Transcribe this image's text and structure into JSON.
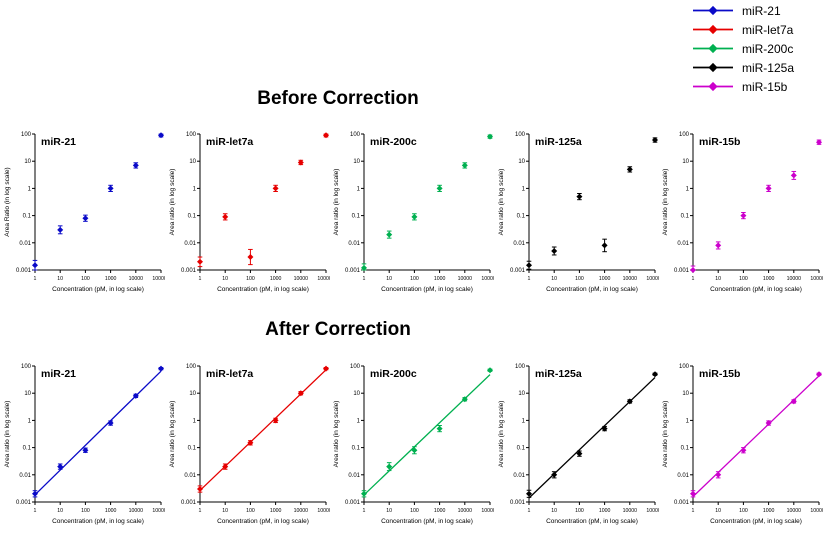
{
  "figure": {
    "before_title": "Before Correction",
    "after_title": "After Correction"
  },
  "legend": {
    "items": [
      {
        "label": "miR-21",
        "color": "#0a0ac8"
      },
      {
        "label": "miR-let7a",
        "color": "#e60000"
      },
      {
        "label": "miR-200c",
        "color": "#00b050"
      },
      {
        "label": "miR-125a",
        "color": "#000000"
      },
      {
        "label": "miR-15b",
        "color": "#cc00cc"
      }
    ]
  },
  "chart_data": [
    {
      "type": "scatter",
      "row": "before",
      "title": "miR-21",
      "color": "#0a0ac8",
      "marker": "diamond",
      "fit_line": false,
      "x": [
        1,
        10,
        100,
        1000,
        10000,
        100000
      ],
      "y": [
        0.0015,
        0.03,
        0.08,
        1.0,
        7,
        90
      ],
      "yerr": [
        1.5,
        1.4,
        1.3,
        1.3,
        1.25,
        1.15
      ],
      "xlabel": "Concentration (pM, in log scale)",
      "ylabel": "Area Ratio (in log scale)",
      "xlim": [
        1,
        100000
      ],
      "ylim": [
        0.001,
        100
      ],
      "xticks": [
        "1",
        "10",
        "100",
        "1000",
        "10000",
        "100000"
      ],
      "yticks": [
        "100",
        "10",
        "1",
        "0.1",
        "0.01",
        "0.001"
      ]
    },
    {
      "type": "scatter",
      "row": "before",
      "title": "miR-let7a",
      "color": "#e60000",
      "marker": "diamond",
      "fit_line": false,
      "x": [
        1,
        10,
        100,
        1000,
        10000,
        100000
      ],
      "y": [
        0.002,
        0.09,
        0.003,
        1.0,
        9,
        90
      ],
      "yerr": [
        1.5,
        1.3,
        1.9,
        1.3,
        1.2,
        1.15
      ],
      "xlabel": "Concentration (pM, in log scale)",
      "ylabel": "Area ratio (in log scale)",
      "xlim": [
        1,
        100000
      ],
      "ylim": [
        0.001,
        100
      ],
      "xticks": [
        "1",
        "10",
        "100",
        "1000",
        "10000",
        "100000"
      ],
      "yticks": [
        "100",
        "10",
        "1",
        "0.1",
        "0.01",
        "0.001"
      ]
    },
    {
      "type": "scatter",
      "row": "before",
      "title": "miR-200c",
      "color": "#00b050",
      "marker": "diamond",
      "fit_line": false,
      "x": [
        1,
        10,
        100,
        1000,
        10000,
        100000
      ],
      "y": [
        0.0012,
        0.02,
        0.09,
        1.0,
        7,
        80
      ],
      "yerr": [
        1.4,
        1.35,
        1.3,
        1.3,
        1.25,
        1.15
      ],
      "xlabel": "Concentration (pM, in log scale)",
      "ylabel": "Area ratio (in log scale)",
      "xlim": [
        1,
        100000
      ],
      "ylim": [
        0.001,
        100
      ],
      "xticks": [
        "1",
        "10",
        "100",
        "1000",
        "10000",
        "100000"
      ],
      "yticks": [
        "100",
        "10",
        "1",
        "0.1",
        "0.01",
        "0.001"
      ]
    },
    {
      "type": "scatter",
      "row": "before",
      "title": "miR-125a",
      "color": "#000000",
      "marker": "diamond",
      "fit_line": false,
      "x": [
        1,
        10,
        100,
        1000,
        10000,
        100000
      ],
      "y": [
        0.0015,
        0.005,
        0.5,
        0.008,
        5,
        60
      ],
      "yerr": [
        1.4,
        1.4,
        1.3,
        1.7,
        1.25,
        1.2
      ],
      "xlabel": "Concentration (pM, in log scale)",
      "ylabel": "Area ratio (in log scale)",
      "xlim": [
        1,
        100000
      ],
      "ylim": [
        0.001,
        100
      ],
      "xticks": [
        "1",
        "10",
        "100",
        "1000",
        "10000",
        "100000"
      ],
      "yticks": [
        "100",
        "10",
        "1",
        "0.1",
        "0.01",
        "0.001"
      ]
    },
    {
      "type": "scatter",
      "row": "before",
      "title": "miR-15b",
      "color": "#cc00cc",
      "marker": "diamond",
      "fit_line": false,
      "x": [
        1,
        10,
        100,
        1000,
        10000,
        100000
      ],
      "y": [
        0.001,
        0.008,
        0.1,
        1.0,
        3,
        50
      ],
      "yerr": [
        1.4,
        1.35,
        1.3,
        1.3,
        1.4,
        1.2
      ],
      "xlabel": "Concentration (pM, in log scale)",
      "ylabel": "Area ratio (in log scale)",
      "xlim": [
        1,
        100000
      ],
      "ylim": [
        0.001,
        100
      ],
      "xticks": [
        "1",
        "10",
        "100",
        "1000",
        "10000",
        "100000"
      ],
      "yticks": [
        "100",
        "10",
        "1",
        "0.1",
        "0.01",
        "0.001"
      ]
    },
    {
      "type": "scatter",
      "row": "after",
      "title": "miR-21",
      "color": "#0a0ac8",
      "marker": "diamond",
      "fit_line": true,
      "x": [
        1,
        10,
        100,
        1000,
        10000,
        100000
      ],
      "y": [
        0.002,
        0.02,
        0.08,
        0.8,
        8,
        80
      ],
      "yerr": [
        1.3,
        1.25,
        1.2,
        1.2,
        1.15,
        1.1
      ],
      "xlabel": "Concentration (pM, in log scale)",
      "ylabel": "Area ratio (in log scale)",
      "xlim": [
        1,
        100000
      ],
      "ylim": [
        0.001,
        100
      ],
      "xticks": [
        "1",
        "10",
        "100",
        "1000",
        "10000",
        "100000"
      ],
      "yticks": [
        "100",
        "10",
        "1",
        "0.1",
        "0.01",
        "0.001"
      ]
    },
    {
      "type": "scatter",
      "row": "after",
      "title": "miR-let7a",
      "color": "#e60000",
      "marker": "diamond",
      "fit_line": true,
      "x": [
        1,
        10,
        100,
        1000,
        10000,
        100000
      ],
      "y": [
        0.003,
        0.02,
        0.15,
        1.0,
        10,
        80
      ],
      "yerr": [
        1.3,
        1.25,
        1.2,
        1.2,
        1.15,
        1.1
      ],
      "xlabel": "Concentration (pM, in log scale)",
      "ylabel": "Area ratio (in log scale)",
      "xlim": [
        1,
        100000
      ],
      "ylim": [
        0.001,
        100
      ],
      "xticks": [
        "1",
        "10",
        "100",
        "1000",
        "10000",
        "100000"
      ],
      "yticks": [
        "100",
        "10",
        "1",
        "0.1",
        "0.01",
        "0.001"
      ]
    },
    {
      "type": "scatter",
      "row": "after",
      "title": "miR-200c",
      "color": "#00b050",
      "marker": "diamond",
      "fit_line": true,
      "x": [
        1,
        10,
        100,
        1000,
        10000,
        100000
      ],
      "y": [
        0.002,
        0.02,
        0.08,
        0.5,
        6,
        70
      ],
      "yerr": [
        1.3,
        1.4,
        1.35,
        1.3,
        1.15,
        1.1
      ],
      "xlabel": "Concentration (pM, in log scale)",
      "ylabel": "Area ratio (in log scale)",
      "xlim": [
        1,
        100000
      ],
      "ylim": [
        0.001,
        100
      ],
      "xticks": [
        "1",
        "10",
        "100",
        "1000",
        "10000",
        "100000"
      ],
      "yticks": [
        "100",
        "10",
        "1",
        "0.1",
        "0.01",
        "0.001"
      ]
    },
    {
      "type": "scatter",
      "row": "after",
      "title": "miR-125a",
      "color": "#000000",
      "marker": "diamond",
      "fit_line": true,
      "x": [
        1,
        10,
        100,
        1000,
        10000,
        100000
      ],
      "y": [
        0.002,
        0.01,
        0.06,
        0.5,
        5,
        50
      ],
      "yerr": [
        1.35,
        1.3,
        1.25,
        1.2,
        1.15,
        1.1
      ],
      "xlabel": "Concentration (pM, in log scale)",
      "ylabel": "Area ratio (in log scale)",
      "xlim": [
        1,
        100000
      ],
      "ylim": [
        0.001,
        100
      ],
      "xticks": [
        "1",
        "10",
        "100",
        "1000",
        "10000",
        "100000"
      ],
      "yticks": [
        "100",
        "10",
        "1",
        "0.1",
        "0.01",
        "0.001"
      ]
    },
    {
      "type": "scatter",
      "row": "after",
      "title": "miR-15b",
      "color": "#cc00cc",
      "marker": "diamond",
      "fit_line": true,
      "x": [
        1,
        10,
        100,
        1000,
        10000,
        100000
      ],
      "y": [
        0.002,
        0.01,
        0.08,
        0.8,
        5,
        50
      ],
      "yerr": [
        1.3,
        1.3,
        1.25,
        1.2,
        1.15,
        1.1
      ],
      "xlabel": "Concentration (pM, in log scale)",
      "ylabel": "Area ratio (in log scale)",
      "xlim": [
        1,
        100000
      ],
      "ylim": [
        0.001,
        100
      ],
      "xticks": [
        "1",
        "10",
        "100",
        "1000",
        "10000",
        "100000"
      ],
      "yticks": [
        "100",
        "10",
        "1",
        "0.1",
        "0.01",
        "0.001"
      ]
    }
  ]
}
